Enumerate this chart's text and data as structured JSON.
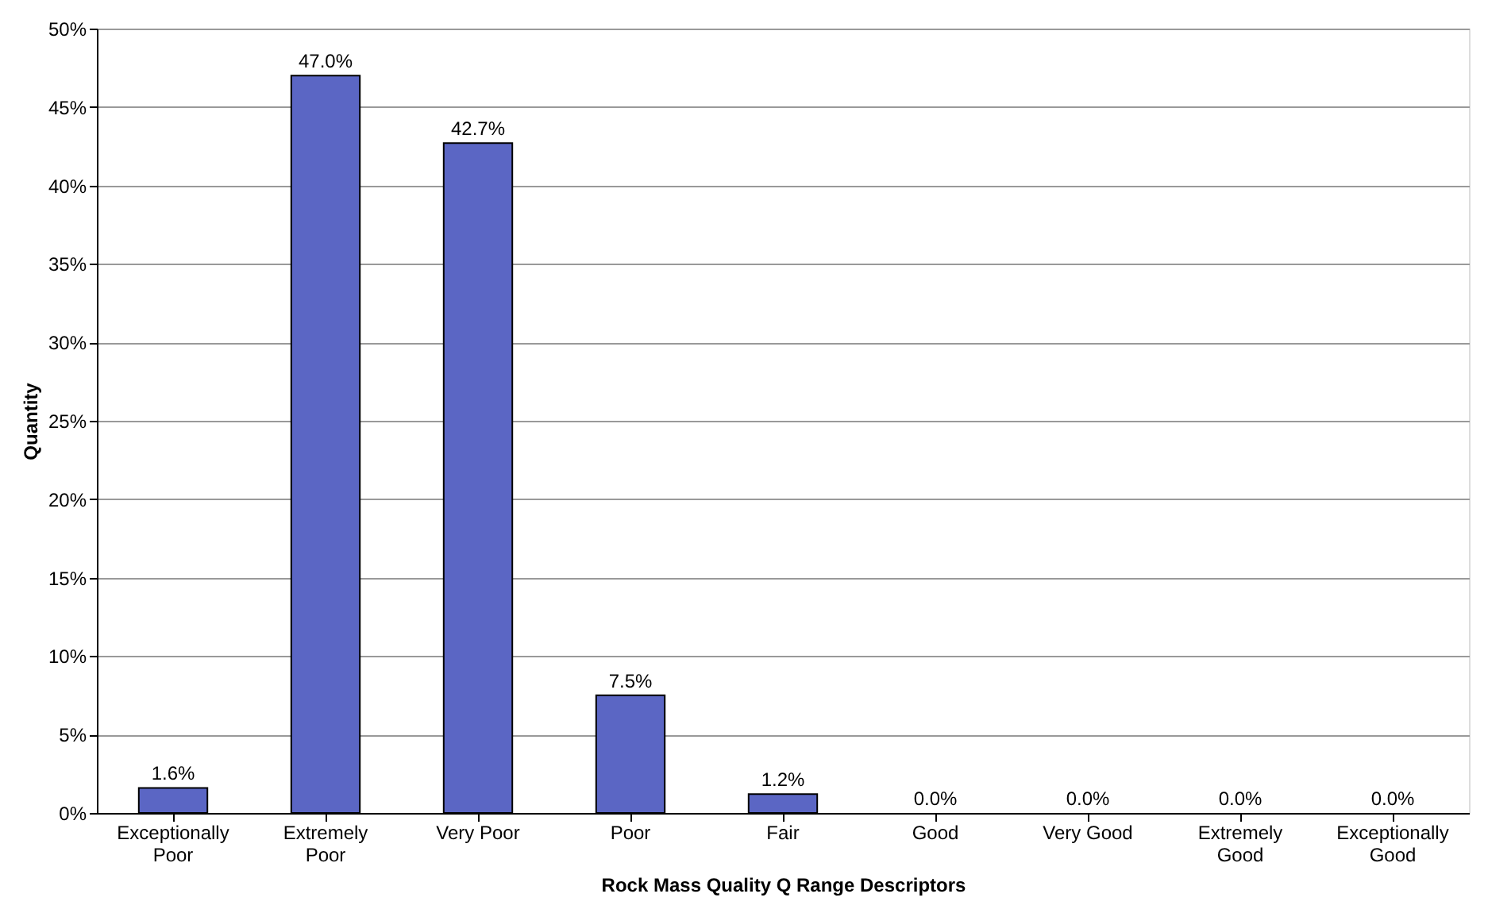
{
  "chart_data": {
    "type": "bar",
    "xlabel": "Rock Mass Quality Q Range Descriptors",
    "ylabel": "Quantity",
    "categories": [
      "Exceptionally\nPoor",
      "Extremely\nPoor",
      "Very Poor",
      "Poor",
      "Fair",
      "Good",
      "Very Good",
      "Extremely\nGood",
      "Exceptionally\nGood"
    ],
    "values": [
      1.6,
      47.0,
      42.7,
      7.5,
      1.2,
      0.0,
      0.0,
      0.0,
      0.0
    ],
    "value_labels": [
      "1.6%",
      "47.0%",
      "42.7%",
      "7.5%",
      "1.2%",
      "0.0%",
      "0.0%",
      "0.0%",
      "0.0%"
    ],
    "color": "#5b66c4",
    "ylim": [
      0,
      50
    ],
    "yticks": [
      {
        "value": 0,
        "label": "0%"
      },
      {
        "value": 5,
        "label": "5%"
      },
      {
        "value": 10,
        "label": "10%"
      },
      {
        "value": 15,
        "label": "15%"
      },
      {
        "value": 20,
        "label": "20%"
      },
      {
        "value": 25,
        "label": "25%"
      },
      {
        "value": 30,
        "label": "30%"
      },
      {
        "value": 35,
        "label": "35%"
      },
      {
        "value": 40,
        "label": "40%"
      },
      {
        "value": 45,
        "label": "45%"
      },
      {
        "value": 50,
        "label": "50%"
      }
    ],
    "grid": "y"
  }
}
